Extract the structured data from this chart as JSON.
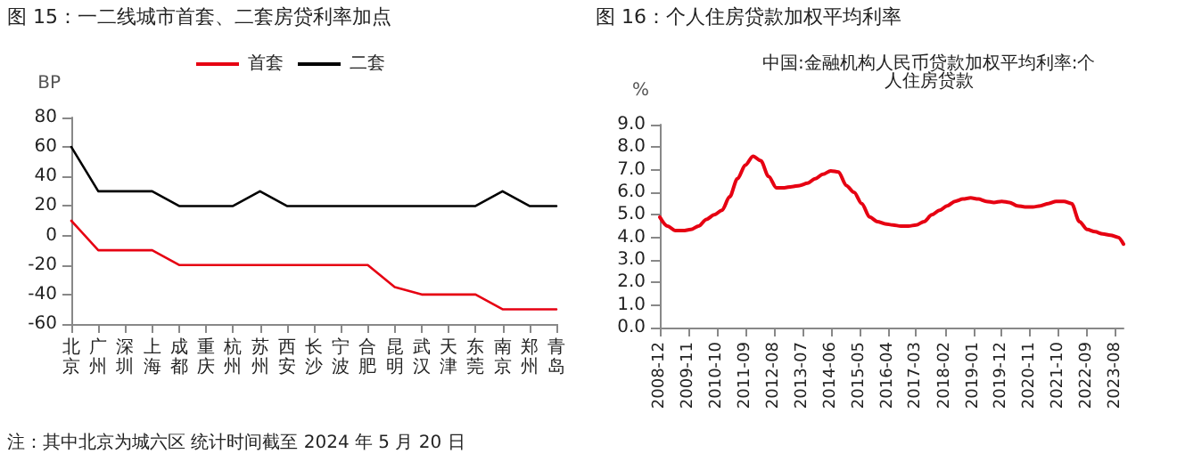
{
  "chart_data": [
    {
      "type": "line",
      "title": "图 15：一二线城市首套、二套房贷利率加点",
      "ylabel": "BP",
      "categories": [
        "北京",
        "广州",
        "深圳",
        "上海",
        "成都",
        "重庆",
        "杭州",
        "苏州",
        "西安",
        "长沙",
        "宁波",
        "合肥",
        "昆明",
        "武汉",
        "天津",
        "东莞",
        "南京",
        "郑州",
        "青岛"
      ],
      "series": [
        {
          "name": "首套",
          "color": "#e60012",
          "values": [
            10,
            -10,
            -10,
            -10,
            -20,
            -20,
            -20,
            -20,
            -20,
            -20,
            -20,
            -20,
            -35,
            -40,
            -40,
            -40,
            -50,
            -50,
            -50
          ]
        },
        {
          "name": "二套",
          "color": "#000000",
          "values": [
            60,
            30,
            30,
            30,
            20,
            20,
            20,
            30,
            20,
            20,
            20,
            20,
            20,
            20,
            20,
            20,
            30,
            20,
            20
          ]
        }
      ],
      "ylim": [
        -60,
        80
      ],
      "yticks": [
        -60,
        -40,
        -20,
        0,
        20,
        40,
        60,
        80
      ],
      "grid": false,
      "legend": "top",
      "annotations": [
        "注：其中北京为城六区 统计时间截至 2024 年 5 月 20 日"
      ]
    },
    {
      "type": "line",
      "title": "图 16：个人住房贷款加权平均利率",
      "subtitle": "中国:金融机构人民币贷款加权平均利率:个人住房贷款",
      "ylabel": "%",
      "x": [
        "2008-12",
        "2009-03",
        "2009-06",
        "2009-09",
        "2009-12",
        "2010-03",
        "2010-06",
        "2010-09",
        "2010-12",
        "2011-03",
        "2011-06",
        "2011-09",
        "2011-12",
        "2012-03",
        "2012-06",
        "2012-09",
        "2012-12",
        "2013-03",
        "2013-06",
        "2013-09",
        "2013-12",
        "2014-03",
        "2014-06",
        "2014-09",
        "2014-12",
        "2015-03",
        "2015-06",
        "2015-09",
        "2015-12",
        "2016-03",
        "2016-06",
        "2016-09",
        "2016-12",
        "2017-03",
        "2017-06",
        "2017-09",
        "2017-12",
        "2018-03",
        "2018-06",
        "2018-09",
        "2018-12",
        "2019-03",
        "2019-06",
        "2019-09",
        "2019-12",
        "2020-03",
        "2020-06",
        "2020-09",
        "2020-12",
        "2021-03",
        "2021-06",
        "2021-09",
        "2021-12",
        "2022-03",
        "2022-06",
        "2022-09",
        "2022-12",
        "2023-03",
        "2023-06",
        "2023-09",
        "2023-11"
      ],
      "series": [
        {
          "color": "#e60012",
          "values": [
            4.9,
            4.5,
            4.3,
            4.3,
            4.35,
            4.5,
            4.8,
            5.0,
            5.2,
            5.8,
            6.6,
            7.2,
            7.6,
            7.4,
            6.7,
            6.2,
            6.2,
            6.25,
            6.3,
            6.4,
            6.6,
            6.8,
            6.95,
            6.9,
            6.3,
            6.0,
            5.5,
            4.9,
            4.7,
            4.6,
            4.55,
            4.5,
            4.5,
            4.55,
            4.7,
            5.0,
            5.2,
            5.4,
            5.6,
            5.7,
            5.75,
            5.7,
            5.6,
            5.55,
            5.6,
            5.55,
            5.4,
            5.35,
            5.35,
            5.4,
            5.5,
            5.6,
            5.6,
            5.5,
            4.7,
            4.35,
            4.25,
            4.15,
            4.1,
            4.0,
            3.7
          ]
        }
      ],
      "xlim": [
        "2008-12",
        "2023-11"
      ],
      "xticks": [
        "2008-12",
        "2009-11",
        "2010-10",
        "2011-09",
        "2012-08",
        "2013-07",
        "2014-06",
        "2015-05",
        "2016-04",
        "2017-03",
        "2018-02",
        "2019-01",
        "2019-12",
        "2020-11",
        "2021-10",
        "2022-09",
        "2023-08"
      ],
      "ylim": [
        0,
        9
      ],
      "yticks": [
        {
          "value": 0,
          "label": "0.0"
        },
        {
          "value": 1,
          "label": "1.0"
        },
        {
          "value": 2,
          "label": "2.0"
        },
        {
          "value": 3,
          "label": "3.0"
        },
        {
          "value": 4,
          "label": "4.0"
        },
        {
          "value": 5,
          "label": "5.0"
        },
        {
          "value": 6,
          "label": "6.0"
        },
        {
          "value": 7,
          "label": "7.0"
        },
        {
          "value": 8,
          "label": "8.0"
        },
        {
          "value": 9,
          "label": "9.0"
        }
      ],
      "grid": false,
      "legend": false
    }
  ]
}
